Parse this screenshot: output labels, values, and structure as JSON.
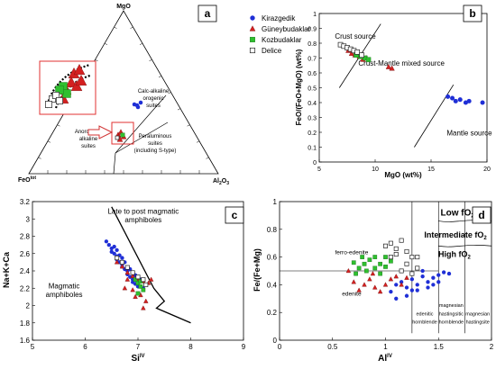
{
  "colors": {
    "blue": "#1f2fd6",
    "red": "#d42020",
    "green": "#2fc02f",
    "panel_letter_bg": "#ffffff"
  },
  "panel_a": {
    "letter": "a",
    "apex_top": "MgO",
    "apex_left": "FeO",
    "apex_left_sup": "tot",
    "apex_right": "Al",
    "apex_right_sub": "2",
    "apex_right_tail": "O",
    "apex_right_sub2": "3",
    "field_calc": [
      "Calc-alkaline",
      "orogenic",
      "suites"
    ],
    "field_anoro": [
      "Anorogenic",
      "alkaline",
      "suites"
    ],
    "field_peral": [
      "Peraluminous",
      "suites",
      "(including S-type)"
    ],
    "legend": [
      {
        "label": "Kirazgedik",
        "marker": "circle"
      },
      {
        "label": "Güneybudaklar",
        "marker": "triangle"
      },
      {
        "label": "Kozbudaklar",
        "marker": "square"
      },
      {
        "label": "Delice",
        "marker": "open-square"
      }
    ]
  },
  "chart_data": [
    {
      "type": "scatter",
      "panel": "b",
      "xlabel": "MgO (wt%)",
      "ylabel": "FeO/(FeO+MgO) (wt%)",
      "xlim": [
        5,
        20
      ],
      "ylim": [
        0,
        1
      ],
      "xticks": [
        5,
        10,
        15,
        20
      ],
      "yticks": [
        0,
        0.1,
        0.2,
        0.3,
        0.4,
        0.5,
        0.6,
        0.7,
        0.8,
        0.9,
        1
      ],
      "annotations": [
        "Crust source",
        "Crust-Mantle mixed source",
        "Mantle source"
      ],
      "series": [
        {
          "name": "Kirazgedik",
          "points": [
            [
              16.5,
              0.44
            ],
            [
              16.9,
              0.43
            ],
            [
              17.2,
              0.41
            ],
            [
              17.6,
              0.42
            ],
            [
              18.1,
              0.4
            ],
            [
              18.4,
              0.41
            ],
            [
              19.6,
              0.4
            ]
          ]
        },
        {
          "name": "Güneybudaklar",
          "points": [
            [
              7.6,
              0.75
            ],
            [
              7.9,
              0.73
            ],
            [
              8.2,
              0.72
            ],
            [
              8.6,
              0.71
            ],
            [
              8.9,
              0.69
            ],
            [
              9.2,
              0.7
            ],
            [
              11.2,
              0.64
            ],
            [
              11.5,
              0.63
            ]
          ]
        },
        {
          "name": "Kozbudaklar",
          "points": [
            [
              8.3,
              0.72
            ],
            [
              8.7,
              0.71
            ],
            [
              9.1,
              0.7
            ],
            [
              9.4,
              0.69
            ]
          ]
        },
        {
          "name": "Delice",
          "points": [
            [
              6.9,
              0.79
            ],
            [
              7.2,
              0.78
            ],
            [
              7.5,
              0.77
            ],
            [
              7.8,
              0.76
            ],
            [
              8.1,
              0.75
            ],
            [
              8.4,
              0.74
            ],
            [
              8.8,
              0.72
            ]
          ]
        }
      ]
    },
    {
      "type": "scatter",
      "panel": "c",
      "xlabel": "Si",
      "xlabel_sup": "IV",
      "ylabel": "Na+K+Ca",
      "xlim": [
        5,
        9
      ],
      "ylim": [
        1.6,
        3.2
      ],
      "xticks": [
        5,
        6,
        7,
        8,
        9
      ],
      "yticks": [
        1.6,
        1.8,
        2,
        2.2,
        2.4,
        2.6,
        2.8,
        3,
        3.2
      ],
      "annotations": [
        "Late to post magmatic",
        "amphiboles",
        "Magmatic",
        "amphiboles"
      ],
      "series": [
        {
          "name": "Kirazgedik",
          "points": [
            [
              6.4,
              2.74
            ],
            [
              6.45,
              2.7
            ],
            [
              6.5,
              2.66
            ],
            [
              6.5,
              2.62
            ],
            [
              6.55,
              2.6
            ],
            [
              6.6,
              2.57
            ],
            [
              6.6,
              2.53
            ],
            [
              6.65,
              2.5
            ],
            [
              6.7,
              2.48
            ],
            [
              6.7,
              2.45
            ],
            [
              6.75,
              2.42
            ],
            [
              6.8,
              2.4
            ],
            [
              6.8,
              2.36
            ],
            [
              6.85,
              2.33
            ],
            [
              6.9,
              2.3
            ],
            [
              6.9,
              2.27
            ],
            [
              6.95,
              2.25
            ],
            [
              7.0,
              2.22
            ],
            [
              6.55,
              2.68
            ],
            [
              6.65,
              2.58
            ],
            [
              6.75,
              2.5
            ],
            [
              6.85,
              2.42
            ],
            [
              6.95,
              2.35
            ],
            [
              6.6,
              2.64
            ],
            [
              6.7,
              2.55
            ],
            [
              7.05,
              2.3
            ],
            [
              7.1,
              2.2
            ]
          ]
        },
        {
          "name": "Güneybudaklar",
          "points": [
            [
              6.6,
              2.5
            ],
            [
              6.7,
              2.45
            ],
            [
              6.8,
              2.38
            ],
            [
              6.9,
              2.34
            ],
            [
              7.0,
              2.3
            ],
            [
              7.1,
              2.28
            ],
            [
              7.2,
              2.26
            ],
            [
              7.25,
              2.3
            ],
            [
              6.75,
              2.2
            ],
            [
              6.9,
              2.18
            ],
            [
              7.05,
              2.12
            ],
            [
              7.15,
              2.05
            ],
            [
              7.1,
              1.97
            ],
            [
              6.95,
              2.1
            ],
            [
              6.8,
              2.3
            ]
          ]
        },
        {
          "name": "Kozbudaklar",
          "points": [
            [
              6.95,
              2.3
            ],
            [
              7.0,
              2.26
            ],
            [
              7.05,
              2.22
            ],
            [
              7.1,
              2.18
            ],
            [
              7.0,
              2.14
            ],
            [
              7.05,
              2.28
            ]
          ]
        },
        {
          "name": "Delice",
          "points": [
            [
              6.6,
              2.55
            ],
            [
              6.7,
              2.5
            ],
            [
              6.8,
              2.44
            ],
            [
              6.9,
              2.38
            ],
            [
              7.0,
              2.33
            ],
            [
              7.1,
              2.3
            ],
            [
              7.15,
              2.24
            ]
          ]
        }
      ]
    },
    {
      "type": "scatter",
      "panel": "d",
      "xlabel": "Al",
      "xlabel_sup": "IV",
      "ylabel": "Fe/(Fe+Mg)",
      "xlim": [
        0,
        2
      ],
      "ylim": [
        0,
        1
      ],
      "xticks": [
        0,
        0.5,
        1,
        1.5,
        2
      ],
      "yticks": [
        0,
        0.2,
        0.4,
        0.6,
        0.8,
        1
      ],
      "annotations": [
        "Low fO",
        "Intermediate fO",
        "High fO",
        "ferro-edenite",
        "edenite",
        "edenitic hornblende",
        "magnesian hastingsitic hornblende",
        "magnesian hastingsite"
      ],
      "series": [
        {
          "name": "Kirazgedik",
          "points": [
            [
              1.05,
              0.35
            ],
            [
              1.1,
              0.4
            ],
            [
              1.15,
              0.42
            ],
            [
              1.2,
              0.38
            ],
            [
              1.25,
              0.44
            ],
            [
              1.3,
              0.4
            ],
            [
              1.35,
              0.46
            ],
            [
              1.4,
              0.42
            ],
            [
              1.45,
              0.45
            ],
            [
              1.5,
              0.47
            ],
            [
              1.55,
              0.49
            ],
            [
              1.6,
              0.48
            ],
            [
              1.2,
              0.32
            ],
            [
              1.3,
              0.36
            ],
            [
              1.4,
              0.38
            ],
            [
              1.1,
              0.3
            ],
            [
              1.5,
              0.42
            ],
            [
              1.35,
              0.5
            ],
            [
              1.45,
              0.4
            ],
            [
              1.25,
              0.36
            ]
          ]
        },
        {
          "name": "Güneybudaklar",
          "points": [
            [
              0.7,
              0.42
            ],
            [
              0.8,
              0.4
            ],
            [
              0.85,
              0.44
            ],
            [
              0.9,
              0.38
            ],
            [
              0.95,
              0.35
            ],
            [
              1.0,
              0.4
            ],
            [
              1.05,
              0.44
            ],
            [
              1.1,
              0.46
            ],
            [
              0.75,
              0.36
            ],
            [
              0.88,
              0.48
            ],
            [
              1.15,
              0.4
            ],
            [
              1.2,
              0.45
            ],
            [
              0.65,
              0.5
            ]
          ]
        },
        {
          "name": "Kozbudaklar",
          "points": [
            [
              0.7,
              0.56
            ],
            [
              0.75,
              0.52
            ],
            [
              0.8,
              0.55
            ],
            [
              0.85,
              0.58
            ],
            [
              0.9,
              0.6
            ],
            [
              0.95,
              0.55
            ],
            [
              1.0,
              0.53
            ],
            [
              1.05,
              0.57
            ],
            [
              0.82,
              0.5
            ],
            [
              0.9,
              0.52
            ],
            [
              0.78,
              0.6
            ],
            [
              1.0,
              0.6
            ],
            [
              0.95,
              0.48
            ],
            [
              0.72,
              0.48
            ]
          ]
        },
        {
          "name": "Delice",
          "points": [
            [
              1.0,
              0.68
            ],
            [
              1.05,
              0.7
            ],
            [
              1.1,
              0.66
            ],
            [
              1.15,
              0.72
            ],
            [
              1.2,
              0.64
            ],
            [
              1.25,
              0.6
            ],
            [
              1.1,
              0.62
            ],
            [
              1.2,
              0.55
            ],
            [
              1.3,
              0.52
            ],
            [
              1.15,
              0.5
            ],
            [
              1.25,
              0.48
            ],
            [
              1.05,
              0.6
            ],
            [
              1.3,
              0.6
            ]
          ]
        }
      ]
    }
  ]
}
